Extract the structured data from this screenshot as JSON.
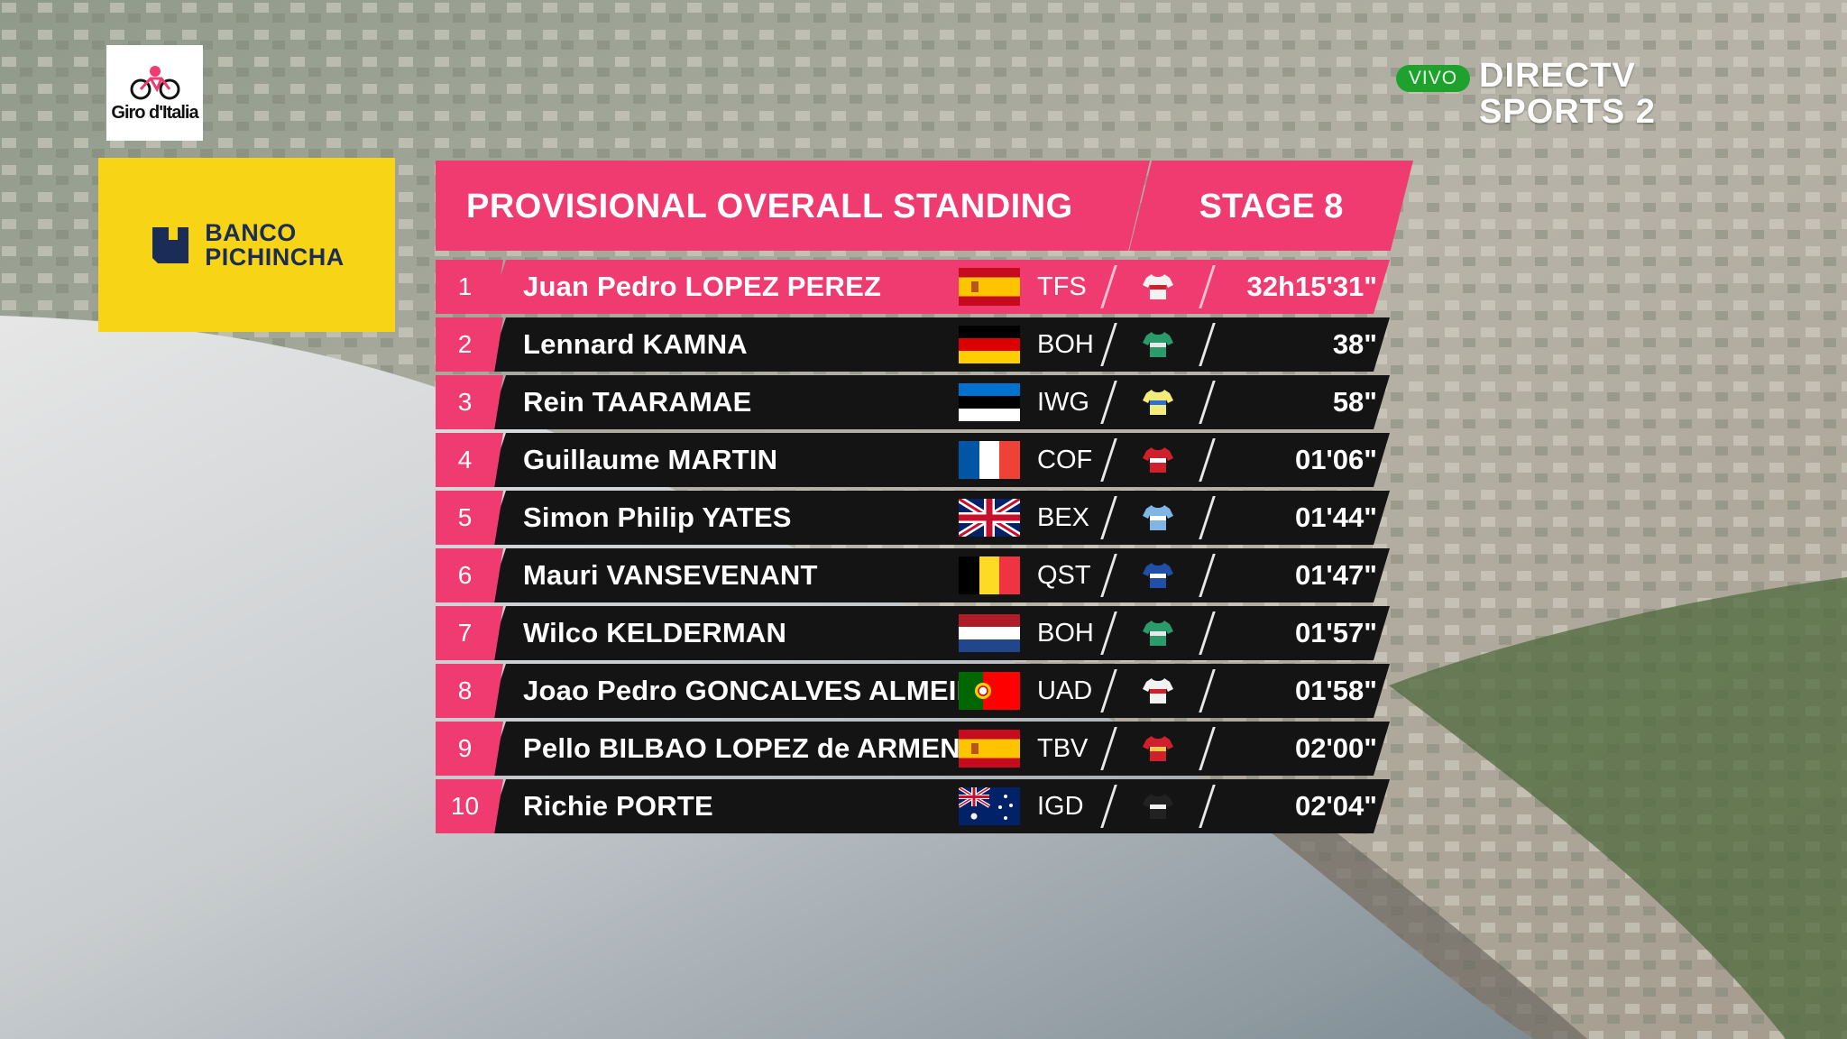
{
  "logo": {
    "text": "Giro d'Italia"
  },
  "sponsor": {
    "line1": "BANCO",
    "line2": "PICHINCHA"
  },
  "broadcast": {
    "live": "VIVO",
    "network_line1": "DIRECTV",
    "network_line2": "SPORTS 2"
  },
  "header": {
    "title": "PROVISIONAL OVERALL STANDING",
    "stage": "STAGE 8"
  },
  "colors": {
    "accent": "#ef3b70",
    "row_bg": "#141414",
    "sponsor_bg": "#f7d516",
    "live": "#1fa12e"
  },
  "standings": [
    {
      "pos": "1",
      "name": "Juan Pedro LOPEZ PEREZ",
      "flag": "spain",
      "team": "TFS",
      "jersey": "white-red-jersey-icon",
      "time": "32h15'31\""
    },
    {
      "pos": "2",
      "name": "Lennard KAMNA",
      "flag": "germany",
      "team": "BOH",
      "jersey": "green-jersey-icon",
      "time": "38\""
    },
    {
      "pos": "3",
      "name": "Rein TAARAMAE",
      "flag": "estonia",
      "team": "IWG",
      "jersey": "yellow-jersey-icon",
      "time": "58\""
    },
    {
      "pos": "4",
      "name": "Guillaume MARTIN",
      "flag": "france",
      "team": "COF",
      "jersey": "red-white-jersey-icon",
      "time": "01'06\""
    },
    {
      "pos": "5",
      "name": "Simon Philip YATES",
      "flag": "uk",
      "team": "BEX",
      "jersey": "light-blue-jersey-icon",
      "time": "01'44\""
    },
    {
      "pos": "6",
      "name": "Mauri VANSEVENANT",
      "flag": "belgium",
      "team": "QST",
      "jersey": "blue-jersey-icon",
      "time": "01'47\""
    },
    {
      "pos": "7",
      "name": "Wilco KELDERMAN",
      "flag": "netherlands",
      "team": "BOH",
      "jersey": "green-jersey-icon",
      "time": "01'57\""
    },
    {
      "pos": "8",
      "name": "Joao Pedro GONCALVES ALMEIDA",
      "flag": "portugal",
      "team": "UAD",
      "jersey": "white-red-jersey-icon",
      "time": "01'58\""
    },
    {
      "pos": "9",
      "name": "Pello BILBAO LOPEZ de ARMENTIA",
      "flag": "spain",
      "team": "TBV",
      "jersey": "red-jersey-icon",
      "time": "02'00\""
    },
    {
      "pos": "10",
      "name": "Richie PORTE",
      "flag": "australia",
      "team": "IGD",
      "jersey": "dark-jersey-icon",
      "time": "02'04\""
    }
  ]
}
